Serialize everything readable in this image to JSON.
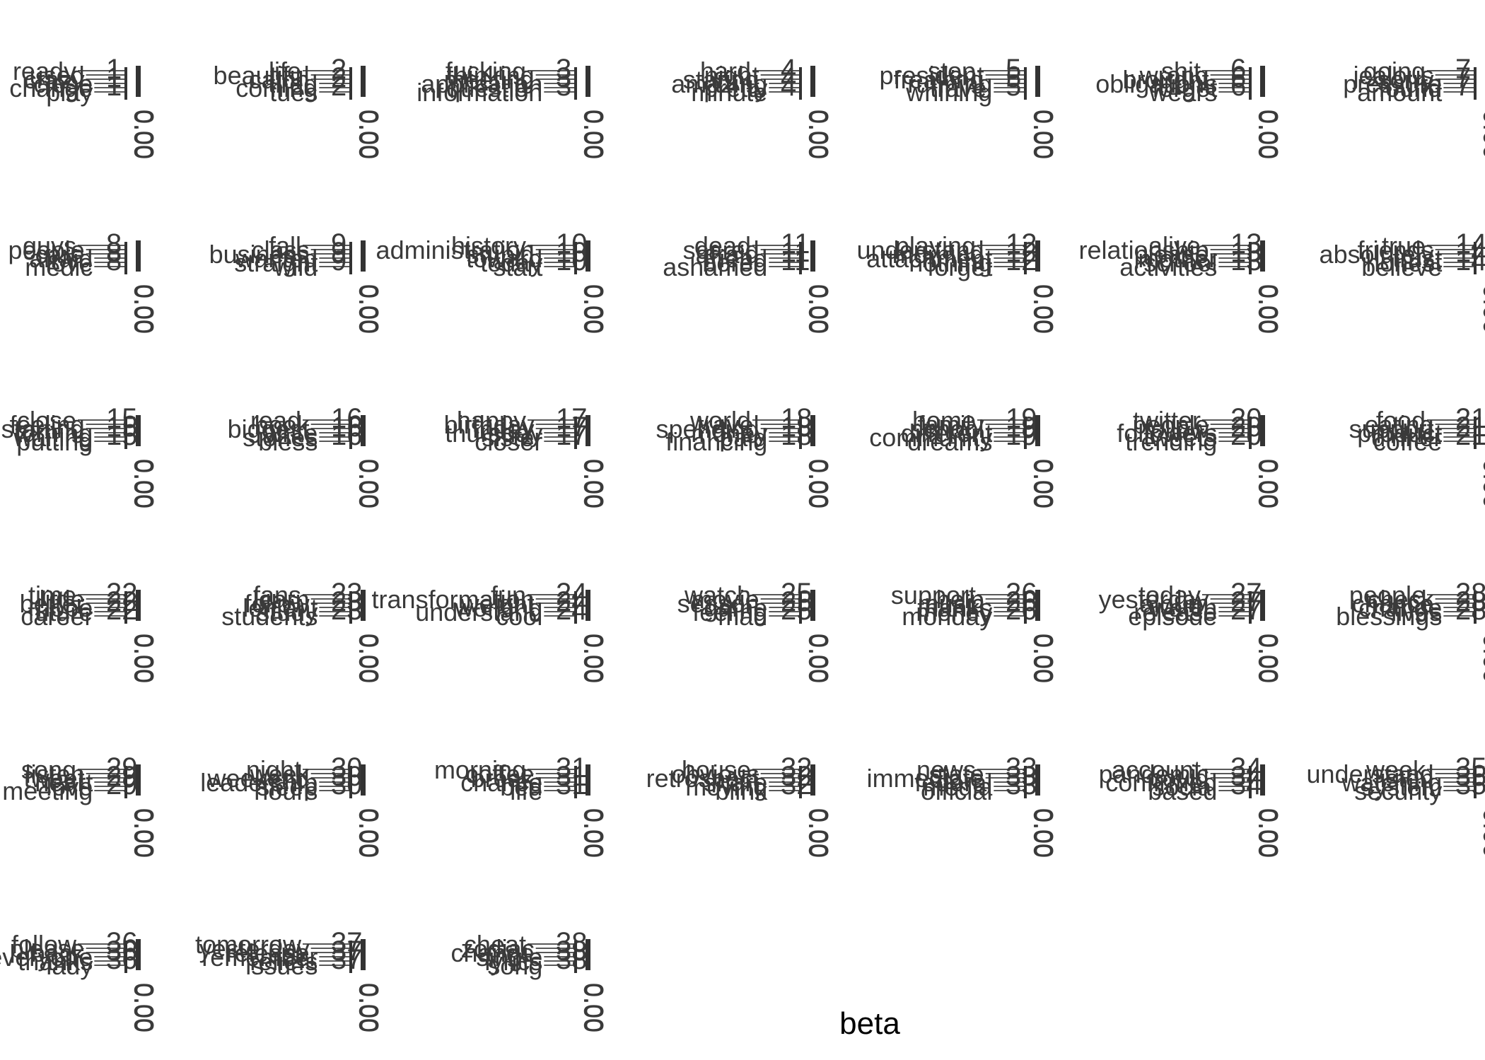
{
  "chart_data": {
    "type": "bar",
    "orientation": "horizontal",
    "facet_layout": "wrap",
    "xlabel": "beta",
    "ylabel": "",
    "x_tick_labels": [
      "0.00"
    ],
    "grid": false,
    "legend": "none",
    "colors": {
      "bar": "#595959",
      "text": "#3a3a3a",
      "axis": "#333333",
      "title": "#000000"
    },
    "panels": [
      {
        "topic": "1",
        "terms": [
          "ready",
          "used",
          "crazy",
          "close",
          "change",
          "play"
        ],
        "values": [
          0.006,
          0.005,
          0.005,
          0.004,
          0.004,
          0.004
        ]
      },
      {
        "topic": "2",
        "terms": [
          "life",
          "beautiful",
          "catch",
          "tired",
          "coming",
          "tues"
        ],
        "values": [
          0.006,
          0.005,
          0.005,
          0.004,
          0.004,
          0.004
        ]
      },
      {
        "topic": "3",
        "terms": [
          "fucking",
          "thinking",
          "meeting",
          "application",
          "question",
          "information"
        ],
        "values": [
          0.006,
          0.005,
          0.005,
          0.004,
          0.004,
          0.004
        ]
      },
      {
        "topic": "4",
        "terms": [
          "hard",
          "night",
          "staring",
          "amazing",
          "pretty",
          "minute"
        ],
        "values": [
          0.006,
          0.005,
          0.005,
          0.004,
          0.004,
          0.004
        ]
      },
      {
        "topic": "5",
        "terms": [
          "stop",
          "president",
          "freaking",
          "running",
          "travel",
          "whirling"
        ],
        "values": [
          0.006,
          0.005,
          0.005,
          0.004,
          0.004,
          0.004
        ]
      },
      {
        "topic": "6",
        "terms": [
          "shit",
          "wrong",
          "brought",
          "obligations",
          "forget",
          "wears"
        ],
        "values": [
          0.006,
          0.005,
          0.005,
          0.004,
          0.004,
          0.004
        ]
      },
      {
        "topic": "7",
        "terms": [
          "going",
          "jealous",
          "sorry",
          "pressure",
          "found",
          "amount"
        ],
        "values": [
          0.006,
          0.005,
          0.005,
          0.004,
          0.004,
          0.004
        ]
      },
      {
        "topic": "8",
        "terms": [
          "guys",
          "people",
          "care",
          "afraid",
          "love",
          "medic"
        ],
        "values": [
          0.006,
          0.005,
          0.005,
          0.004,
          0.004,
          0.004
        ]
      },
      {
        "topic": "9",
        "terms": [
          "fall",
          "class",
          "business",
          "wanted",
          "straight",
          "wild"
        ],
        "values": [
          0.006,
          0.005,
          0.005,
          0.004,
          0.004,
          0.004
        ]
      },
      {
        "topic": "10",
        "terms": [
          "history",
          "administration",
          "stupid",
          "toward",
          "today",
          "start"
        ],
        "values": [
          0.006,
          0.005,
          0.005,
          0.004,
          0.004,
          0.004
        ]
      },
      {
        "topic": "11",
        "terms": [
          "dead",
          "scared",
          "afraid",
          "friend",
          "bored",
          "ashamed"
        ],
        "values": [
          0.006,
          0.005,
          0.005,
          0.004,
          0.004,
          0.004
        ]
      },
      {
        "topic": "12",
        "terms": [
          "playing",
          "understand",
          "morning",
          "attachment",
          "nothing",
          "forget"
        ],
        "values": [
          0.006,
          0.005,
          0.005,
          0.004,
          0.004,
          0.004
        ]
      },
      {
        "topic": "13",
        "terms": [
          "alive",
          "relationship",
          "please",
          "mother",
          "school",
          "activities"
        ],
        "values": [
          0.006,
          0.005,
          0.005,
          0.004,
          0.004,
          0.004
        ]
      },
      {
        "topic": "14",
        "terms": [
          "true",
          "friends",
          "absolutely",
          "trust",
          "honest",
          "believe"
        ],
        "values": [
          0.006,
          0.005,
          0.005,
          0.004,
          0.004,
          0.004
        ]
      },
      {
        "topic": "15",
        "terms": [
          "close",
          "feeling",
          "starting",
          "turning",
          "waiting",
          "putting"
        ],
        "values": [
          0.006,
          0.005,
          0.005,
          0.004,
          0.004,
          0.004
        ]
      },
      {
        "topic": "16",
        "terms": [
          "read",
          "book",
          "biggest",
          "write",
          "stories",
          "bless"
        ],
        "values": [
          0.006,
          0.005,
          0.005,
          0.004,
          0.004,
          0.004
        ]
      },
      {
        "topic": "17",
        "terms": [
          "happy",
          "birthday",
          "friday",
          "thursday",
          "sister",
          "closer"
        ],
        "values": [
          0.006,
          0.005,
          0.005,
          0.004,
          0.004,
          0.004
        ]
      },
      {
        "topic": "18",
        "terms": [
          "world",
          "travel",
          "spending",
          "money",
          "paid",
          "financing"
        ],
        "values": [
          0.006,
          0.005,
          0.005,
          0.004,
          0.004,
          0.004
        ]
      },
      {
        "topic": "19",
        "terms": [
          "home",
          "family",
          "school",
          "different",
          "community",
          "dreams"
        ],
        "values": [
          0.006,
          0.005,
          0.005,
          0.004,
          0.004,
          0.004
        ]
      },
      {
        "topic": "20",
        "terms": [
          "twitter",
          "people",
          "follow",
          "followers",
          "tweets",
          "trending"
        ],
        "values": [
          0.006,
          0.005,
          0.005,
          0.004,
          0.004,
          0.004
        ]
      },
      {
        "topic": "21",
        "terms": [
          "food",
          "eating",
          "support",
          "product",
          "dinner",
          "coffee"
        ],
        "values": [
          0.006,
          0.005,
          0.005,
          0.004,
          0.004,
          0.004
        ]
      },
      {
        "topic": "22",
        "terms": [
          "time",
          "little",
          "better",
          "hope",
          "future",
          "career"
        ],
        "values": [
          0.006,
          0.005,
          0.005,
          0.004,
          0.004,
          0.004
        ]
      },
      {
        "topic": "23",
        "terms": [
          "fans",
          "learn",
          "follow",
          "lenient",
          "study",
          "students"
        ],
        "values": [
          0.006,
          0.005,
          0.005,
          0.004,
          0.004,
          0.004
        ]
      },
      {
        "topic": "24",
        "terms": [
          "fun",
          "transformation",
          "weight",
          "working",
          "understand",
          "cool"
        ],
        "values": [
          0.006,
          0.005,
          0.005,
          0.004,
          0.004,
          0.004
        ]
      },
      {
        "topic": "25",
        "terms": [
          "watch",
          "movie",
          "season",
          "game",
          "feeling",
          "mad"
        ],
        "values": [
          0.006,
          0.005,
          0.005,
          0.004,
          0.004,
          0.004
        ]
      },
      {
        "topic": "26",
        "terms": [
          "support",
          "help",
          "music",
          "thanks",
          "money",
          "monday"
        ],
        "values": [
          0.006,
          0.005,
          0.005,
          0.004,
          0.004,
          0.004
        ]
      },
      {
        "topic": "27",
        "terms": [
          "today",
          "yesterday",
          "album",
          "watch",
          "release",
          "episode"
        ],
        "values": [
          0.006,
          0.005,
          0.005,
          0.004,
          0.004,
          0.004
        ]
      },
      {
        "topic": "28",
        "terms": [
          "people",
          "check",
          "chance",
          "change",
          "lives",
          "blessings"
        ],
        "values": [
          0.006,
          0.005,
          0.005,
          0.004,
          0.004,
          0.004
        ]
      },
      {
        "topic": "29",
        "terms": [
          "song",
          "listen",
          "tweet",
          "heart",
          "love",
          "meeting"
        ],
        "values": [
          0.006,
          0.005,
          0.005,
          0.004,
          0.004,
          0.004
        ]
      },
      {
        "topic": "30",
        "terms": [
          "night",
          "week",
          "weekend",
          "leadership",
          "sleep",
          "hours"
        ],
        "values": [
          0.006,
          0.005,
          0.005,
          0.004,
          0.004,
          0.004
        ]
      },
      {
        "topic": "31",
        "terms": [
          "morning",
          "coffee",
          "break",
          "chance",
          "bed",
          "life"
        ],
        "values": [
          0.006,
          0.005,
          0.005,
          0.004,
          0.004,
          0.004
        ]
      },
      {
        "topic": "32",
        "terms": [
          "house",
          "obvious",
          "retrospect",
          "share",
          "moving",
          "blink"
        ],
        "values": [
          0.006,
          0.005,
          0.005,
          0.004,
          0.004,
          0.004
        ]
      },
      {
        "topic": "33",
        "terms": [
          "news",
          "state",
          "immediate",
          "federal",
          "media",
          "official"
        ],
        "values": [
          0.006,
          0.005,
          0.005,
          0.004,
          0.004,
          0.004
        ]
      },
      {
        "topic": "34",
        "terms": [
          "account",
          "pandemic",
          "covid",
          "confirmed",
          "social",
          "based"
        ],
        "values": [
          0.006,
          0.005,
          0.005,
          0.004,
          0.004,
          0.004
        ]
      },
      {
        "topic": "35",
        "terms": [
          "week",
          "understand",
          "listen",
          "watching",
          "system",
          "security"
        ],
        "values": [
          0.006,
          0.005,
          0.005,
          0.004,
          0.004,
          0.004
        ]
      },
      {
        "topic": "36",
        "terms": [
          "follow",
          "please",
          "back",
          "everyone",
          "thanks",
          "lady"
        ],
        "values": [
          0.006,
          0.005,
          0.005,
          0.004,
          0.004,
          0.004
        ]
      },
      {
        "topic": "37",
        "terms": [
          "tomorrow",
          "yesterday",
          "release",
          "remember",
          "reliefs",
          "issues"
        ],
        "values": [
          0.006,
          0.005,
          0.005,
          0.004,
          0.004,
          0.004
        ]
      },
      {
        "topic": "38",
        "terms": [
          "cheat",
          "zodiac",
          "change",
          "single",
          "lyrics",
          "song"
        ],
        "values": [
          0.006,
          0.005,
          0.005,
          0.004,
          0.004,
          0.004
        ]
      }
    ]
  }
}
